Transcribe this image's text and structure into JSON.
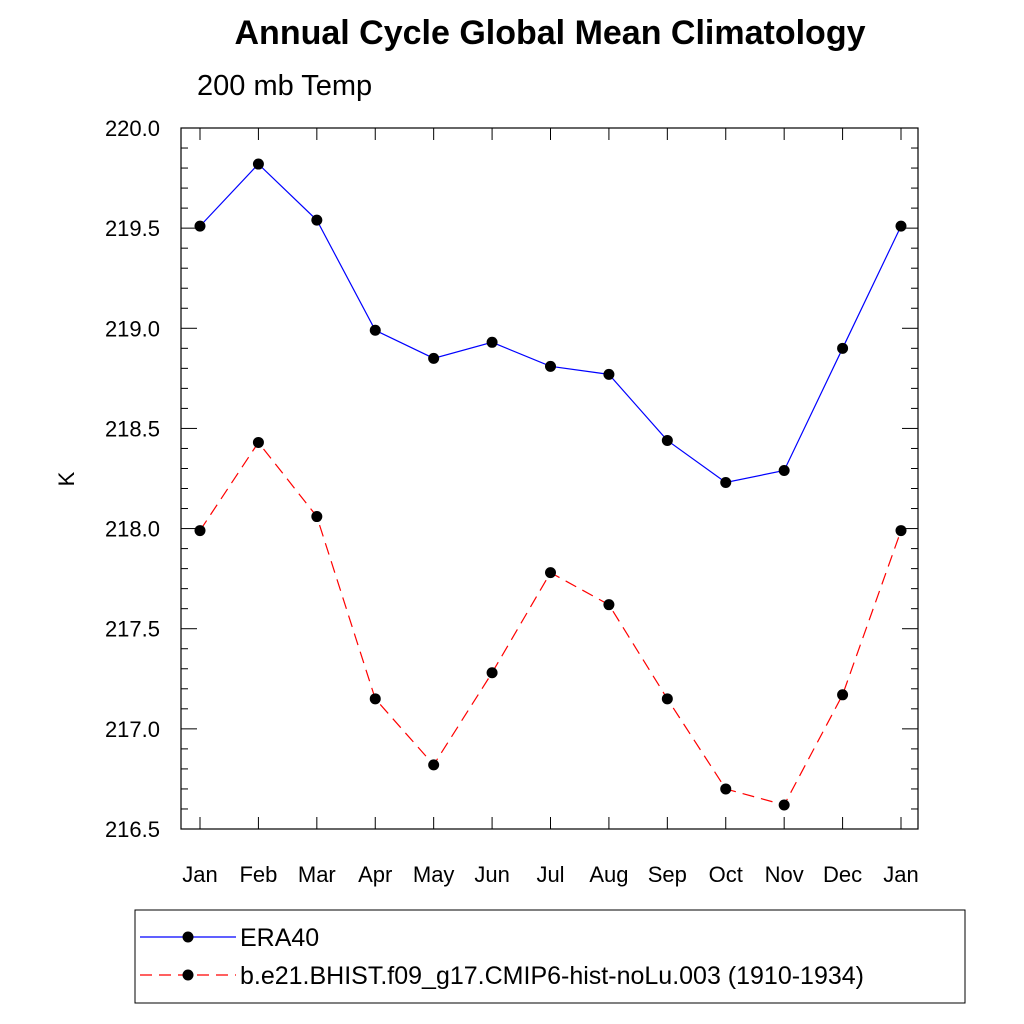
{
  "title": "Annual Cycle Global Mean Climatology",
  "subtitle": "200 mb Temp",
  "chart_data": {
    "type": "line",
    "title": "Annual Cycle Global Mean Climatology",
    "subtitle": "200 mb Temp",
    "xlabel": "",
    "ylabel": "K",
    "categories": [
      "Jan",
      "Feb",
      "Mar",
      "Apr",
      "May",
      "Jun",
      "Jul",
      "Aug",
      "Sep",
      "Oct",
      "Nov",
      "Dec",
      "Jan"
    ],
    "ylim": [
      216.5,
      220.0
    ],
    "yticks": [
      "220.0",
      "219.5",
      "219.0",
      "218.5",
      "218.0",
      "217.5",
      "217.0",
      "216.5"
    ],
    "grid": false,
    "legend_position": "bottom",
    "series": [
      {
        "name": "ERA40",
        "color": "#0000ff",
        "line_style": "solid",
        "marker": "filled-circle",
        "values": [
          219.51,
          219.82,
          219.54,
          218.99,
          218.85,
          218.93,
          218.81,
          218.77,
          218.44,
          218.23,
          218.29,
          218.9,
          219.51
        ]
      },
      {
        "name": "b.e21.BHIST.f09_g17.CMIP6-hist-noLu.003 (1910-1934)",
        "color": "#ff0000",
        "line_style": "dashed",
        "marker": "filled-circle",
        "values": [
          217.99,
          218.43,
          218.06,
          217.15,
          216.82,
          217.28,
          217.78,
          217.62,
          217.15,
          216.7,
          216.62,
          217.17,
          217.99
        ]
      }
    ]
  }
}
